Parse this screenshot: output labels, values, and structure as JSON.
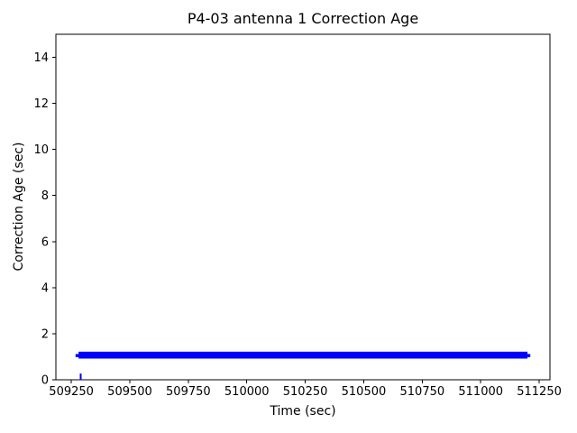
{
  "figure": {
    "background": "#ffffff",
    "text_color": "#000000"
  },
  "chart_data": {
    "type": "scatter",
    "title": "P4-03 antenna 1 Correction Age",
    "xlabel": "Time (sec)",
    "ylabel": "Correction Age (sec)",
    "xlim": [
      509184,
      511296
    ],
    "ylim": [
      0,
      15
    ],
    "x_ticks": [
      509250,
      509500,
      509750,
      510000,
      510250,
      510500,
      510750,
      511000,
      511250
    ],
    "y_ticks": [
      0,
      2,
      4,
      6,
      8,
      10,
      12,
      14
    ],
    "grid": false,
    "legend": null,
    "series": [
      {
        "name": "correction-age-samples",
        "color": "#0000ff",
        "style": "dense-point-band",
        "x_start": 509268,
        "x_end": 511212,
        "band_x_start": 509281,
        "band_x_end": 511200,
        "y_min": 0.92,
        "y_max": 1.22,
        "y_center": 1.05,
        "description": "Dense cluster of correction-age samples hovering around 1 second for the whole time span"
      }
    ],
    "outliers": [
      {
        "x": 509290,
        "y_min": 0.0,
        "y_max": 0.27
      }
    ]
  }
}
